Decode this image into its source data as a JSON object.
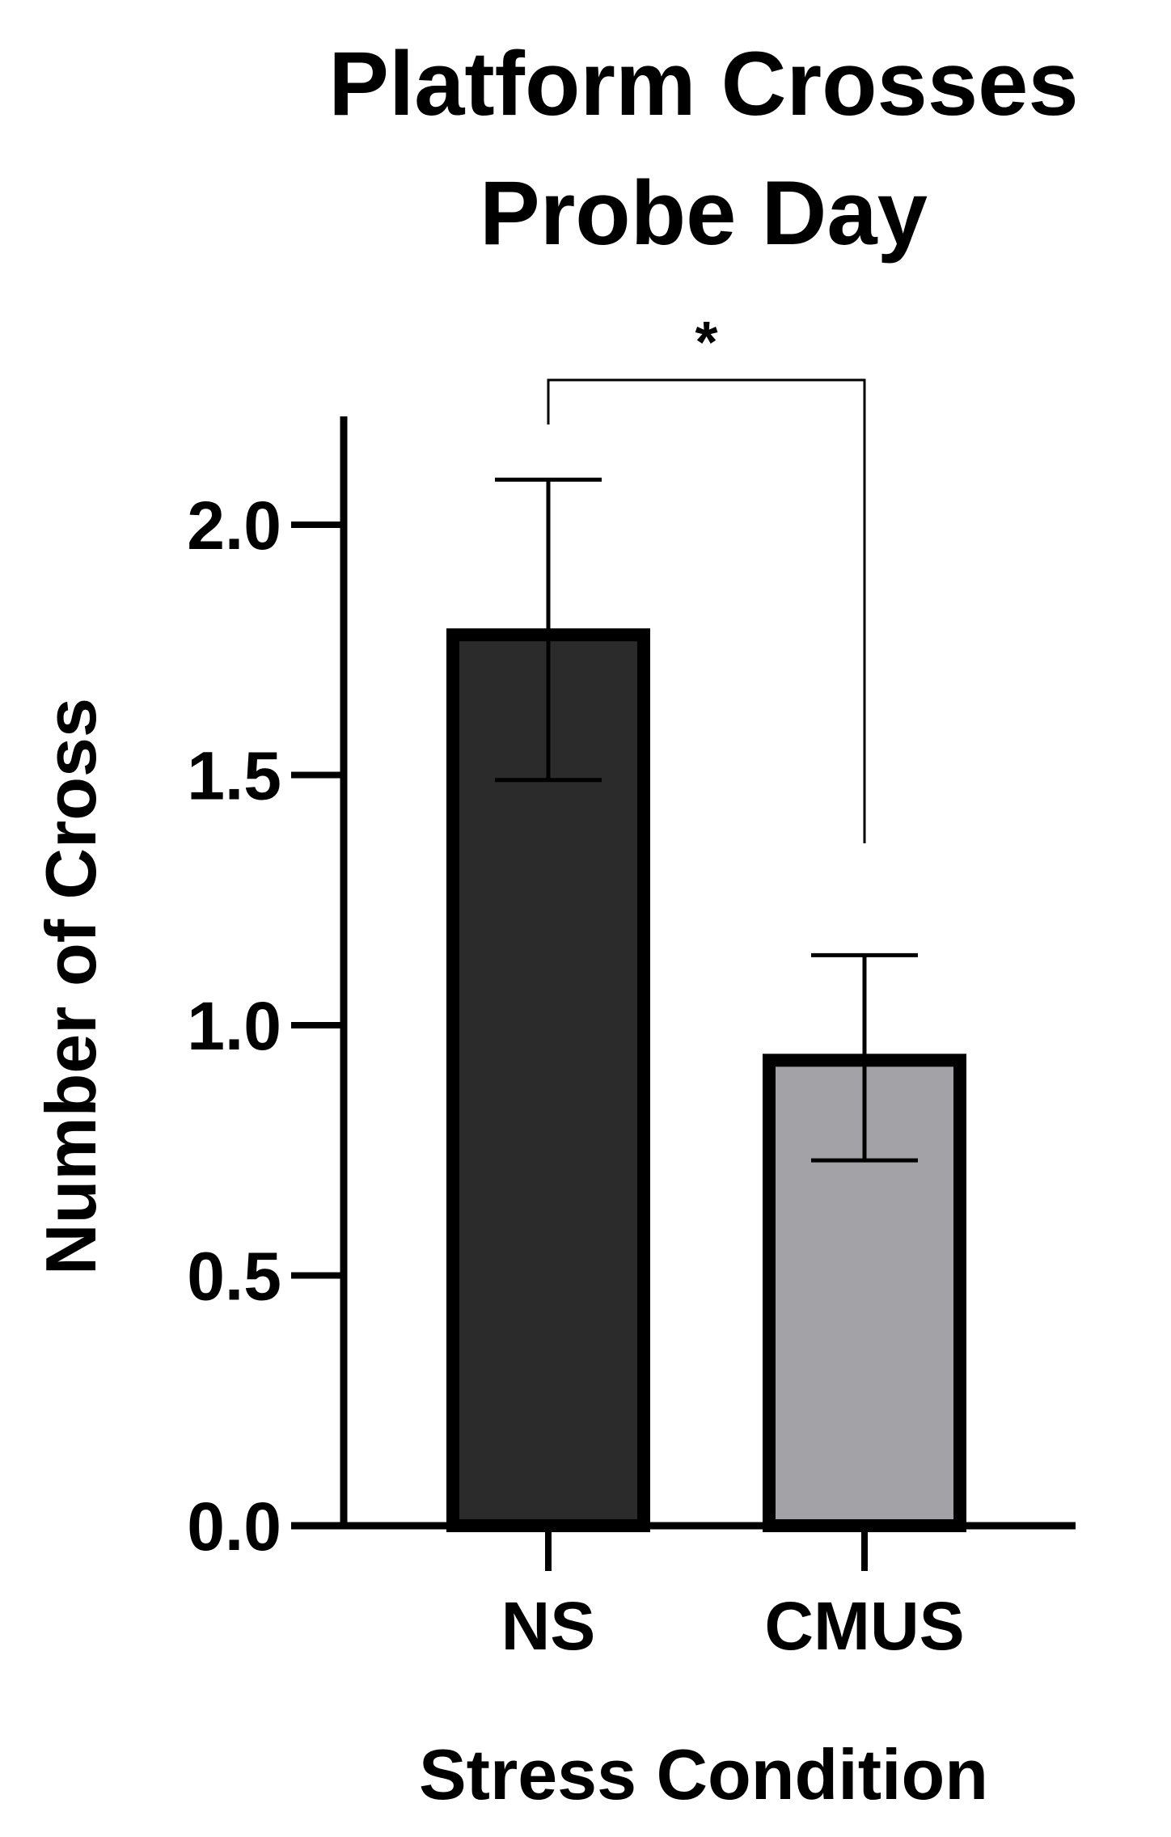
{
  "chart_data": {
    "type": "bar",
    "title_lines": [
      "Platform Crosses",
      "Probe Day"
    ],
    "xlabel": "Stress Condition",
    "ylabel": "Number of Cross",
    "categories": [
      "NS",
      "CMUS"
    ],
    "values": [
      1.78,
      0.93
    ],
    "error_upper": [
      2.09,
      1.14
    ],
    "error_lower": [
      1.49,
      0.73
    ],
    "bar_colors": [
      "#2b2b2b",
      "#a3a2a7"
    ],
    "ylim": [
      0,
      2.2
    ],
    "yticks": [
      0.0,
      0.5,
      1.0,
      1.5,
      2.0
    ],
    "ytick_labels": [
      "0.0",
      "0.5",
      "1.0",
      "1.5",
      "2.0"
    ],
    "grid": false,
    "significance": {
      "label": "*",
      "between": [
        "NS",
        "CMUS"
      ]
    }
  }
}
